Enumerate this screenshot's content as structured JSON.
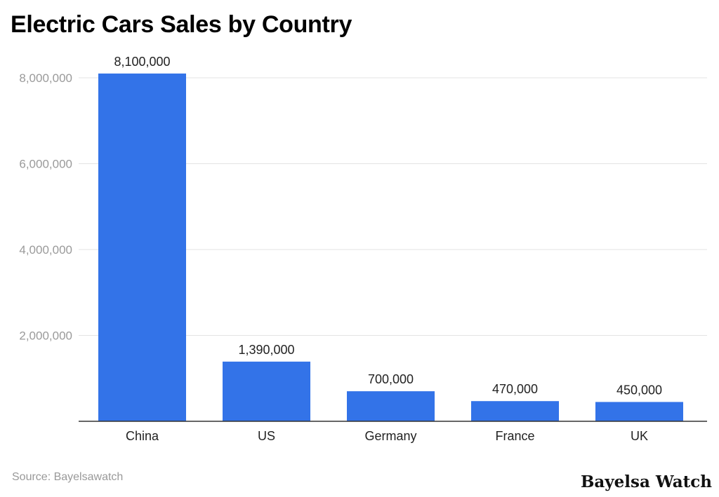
{
  "chart_data": {
    "type": "bar",
    "title": "Electric Cars Sales by Country",
    "categories": [
      "China",
      "US",
      "Germany",
      "France",
      "UK"
    ],
    "values": [
      8100000,
      1390000,
      700000,
      470000,
      450000
    ],
    "data_labels": [
      "8,100,000",
      "1,390,000",
      "700,000",
      "470,000",
      "450,000"
    ],
    "yticks": [
      2000000,
      4000000,
      6000000,
      8000000
    ],
    "ytick_labels": [
      "2,000,000",
      "4,000,000",
      "6,000,000",
      "8,000,000"
    ],
    "ylim": [
      0,
      8000000
    ],
    "grid": true,
    "xlabel": "",
    "ylabel": "",
    "bar_color": "#3373E8"
  },
  "footer": {
    "source": "Source: Bayelsawatch",
    "watermark": "Bayelsa Watch"
  }
}
